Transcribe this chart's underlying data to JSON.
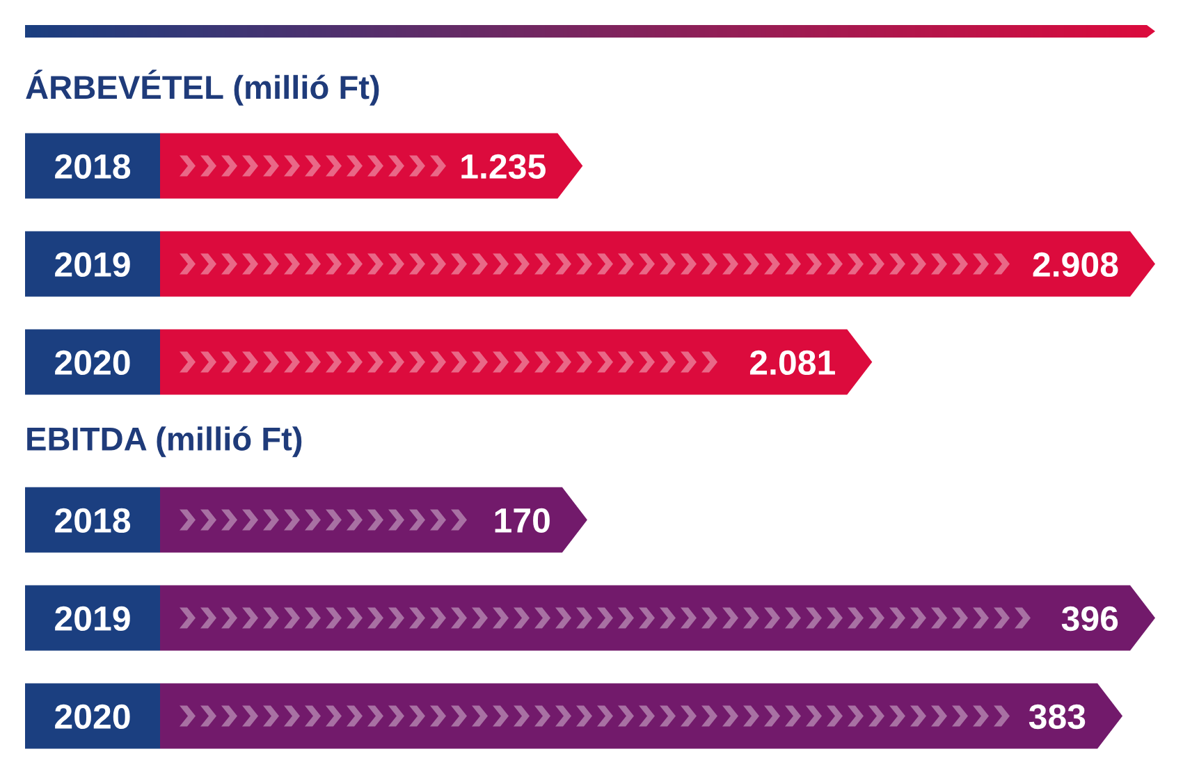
{
  "chart_data": [
    {
      "type": "bar",
      "orientation": "horizontal",
      "title": "ÁRBEVÉTEL (millió Ft)",
      "categories": [
        "2018",
        "2019",
        "2020"
      ],
      "values": [
        1235,
        2908,
        2081
      ],
      "value_labels": [
        "1.235",
        "2.908",
        "2.081"
      ],
      "color": "#dc0b3d",
      "tick_labels": "y"
    },
    {
      "type": "bar",
      "orientation": "horizontal",
      "title": "EBITDA (millió Ft)",
      "categories": [
        "2018",
        "2019",
        "2020"
      ],
      "values": [
        170,
        396,
        383
      ],
      "data_labels": true,
      "color": "#721a6b",
      "tick_labels": "y"
    }
  ]
}
